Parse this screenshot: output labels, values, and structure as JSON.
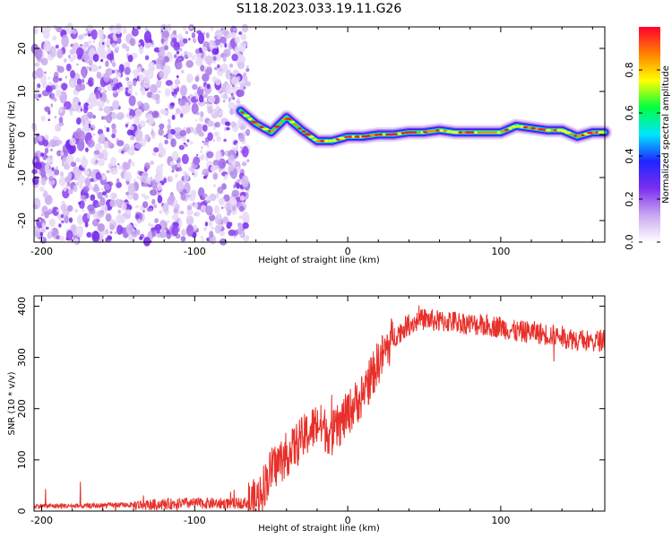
{
  "title": "S118.2023.033.19.11.G26",
  "chart_data": [
    {
      "type": "heatmap",
      "xlabel": "Height of straight line (km)",
      "ylabel": "Frequency (Hz)",
      "xlim": [
        -205,
        168
      ],
      "ylim": [
        -25,
        25
      ],
      "x_ticks": [
        -200,
        -100,
        0,
        100
      ],
      "y_ticks": [
        -20,
        -10,
        0,
        10,
        20
      ],
      "noise_region_x": [
        -205,
        -65
      ],
      "ridge": {
        "x": [
          -70,
          -60,
          -50,
          -40,
          -30,
          -20,
          -10,
          0,
          10,
          20,
          30,
          40,
          50,
          60,
          70,
          80,
          90,
          100,
          110,
          120,
          130,
          140,
          150,
          160,
          168
        ],
        "freq": [
          5.5,
          2.5,
          0.5,
          4,
          1,
          -1.5,
          -1.5,
          -0.5,
          -0.5,
          0,
          0,
          0.5,
          0.5,
          1,
          0.5,
          0.5,
          0.5,
          0.5,
          2,
          1.5,
          1,
          1,
          -0.5,
          0.5,
          0.5
        ]
      },
      "colorbar": {
        "label": "Normalized spectral amplitude",
        "ticks": [
          0.0,
          0.2,
          0.4,
          0.6,
          0.8
        ],
        "colors": [
          "#ffffff",
          "#c9a8f0",
          "#7c2ef0",
          "#1f25ff",
          "#00e6ff",
          "#00ff40",
          "#ffff00",
          "#ff8000",
          "#ff0030"
        ]
      }
    },
    {
      "type": "line",
      "xlabel": "Height of straight line (km)",
      "ylabel": "SNR (10 * v/v)",
      "xlim": [
        -205,
        168
      ],
      "ylim": [
        0,
        420
      ],
      "x_ticks": [
        -200,
        -100,
        0,
        100
      ],
      "y_ticks": [
        0,
        100,
        200,
        300,
        400
      ],
      "color": "#e8302a",
      "series": [
        {
          "x": [
            -205,
            -190,
            -170,
            -150,
            -130,
            -110,
            -90,
            -75,
            -60,
            -50,
            -40,
            -30,
            -20,
            -10,
            0,
            10,
            20,
            30,
            40,
            50,
            60,
            70,
            80,
            90,
            100,
            110,
            120,
            130,
            140,
            150,
            160,
            168
          ],
          "values": [
            10,
            10,
            10,
            12,
            12,
            15,
            15,
            15,
            18,
            80,
            110,
            140,
            170,
            150,
            190,
            230,
            290,
            340,
            365,
            375,
            370,
            370,
            365,
            362,
            360,
            350,
            350,
            345,
            340,
            335,
            330,
            335
          ]
        }
      ]
    }
  ]
}
